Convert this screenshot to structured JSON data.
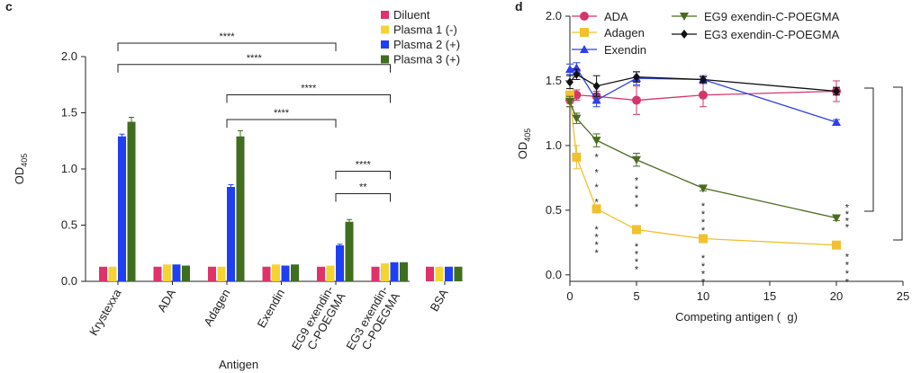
{
  "chart_data": [
    {
      "panel": "c",
      "type": "bar",
      "xlabel": "Antigen",
      "ylabel": "OD",
      "ylabel_sub": "405",
      "ylim": [
        0,
        2.0
      ],
      "yticks": [
        "0.0",
        "0.5",
        "1.0",
        "1.5",
        "2.0"
      ],
      "yticks_values": [
        0,
        0.5,
        1.0,
        1.5,
        2.0
      ],
      "categories": [
        "Krystexxa",
        "ADA",
        "Adagen",
        "Exendin",
        "EG9 exendin-C-POEGMA",
        "EG3 exendin-C-POEGMA",
        "BSA"
      ],
      "category_lines": [
        [
          "Krystexxa"
        ],
        [
          "ADA"
        ],
        [
          "Adagen"
        ],
        [
          "Exendin"
        ],
        [
          "EG9 exendin-",
          "C-POEGMA"
        ],
        [
          "EG3 exendin-",
          "C-POEGMA"
        ],
        [
          "BSA"
        ]
      ],
      "series": [
        {
          "name": "Diluent",
          "color": "#e0316b",
          "values": [
            0.13,
            0.13,
            0.13,
            0.13,
            0.13,
            0.13,
            0.13
          ],
          "errors": [
            0,
            0,
            0,
            0,
            0,
            0,
            0
          ]
        },
        {
          "name": "Plasma 1 (-)",
          "color": "#f5d431",
          "values": [
            0.13,
            0.15,
            0.13,
            0.15,
            0.14,
            0.16,
            0.13
          ],
          "errors": [
            0,
            0,
            0,
            0,
            0,
            0,
            0
          ]
        },
        {
          "name": "Plasma 2 (+)",
          "color": "#1f3ff5",
          "values": [
            1.29,
            0.15,
            0.84,
            0.14,
            0.32,
            0.17,
            0.13
          ],
          "errors": [
            0.02,
            0,
            0.02,
            0,
            0.01,
            0,
            0
          ]
        },
        {
          "name": "Plasma 3 (+)",
          "color": "#3f6e1e",
          "values": [
            1.42,
            0.14,
            1.29,
            0.15,
            0.53,
            0.17,
            0.13
          ],
          "errors": [
            0.04,
            0,
            0.05,
            0,
            0.02,
            0,
            0
          ]
        }
      ],
      "significance": [
        {
          "label": "****",
          "from": "Krystexxa",
          "to": "EG9 exendin-C-POEGMA",
          "y": 2.12
        },
        {
          "label": "****",
          "from": "Krystexxa",
          "to": "EG3 exendin-C-POEGMA",
          "y": 1.93
        },
        {
          "label": "****",
          "from": "Adagen",
          "to": "EG3 exendin-C-POEGMA",
          "y": 1.66
        },
        {
          "label": "****",
          "from": "Adagen",
          "to": "EG9 exendin-C-POEGMA",
          "y": 1.44
        },
        {
          "label": "****",
          "from": "EG9 exendin-C-POEGMA",
          "to": "EG3 exendin-C-POEGMA",
          "y": 0.98
        },
        {
          "label": "**",
          "from": "EG9 exendin-C-POEGMA",
          "to": "EG3 exendin-C-POEGMA",
          "y": 0.78
        }
      ]
    },
    {
      "panel": "d",
      "type": "line",
      "xlabel": "Competing antigen (  g)",
      "ylabel": "OD",
      "ylabel_sub": "405",
      "xlim": [
        0,
        25
      ],
      "ylim": [
        -0.05,
        2.0
      ],
      "xticks": [
        0,
        5,
        10,
        15,
        20,
        25
      ],
      "yticks": [
        "0.0",
        "0.5",
        "1.0",
        "1.5",
        "2.0"
      ],
      "yticks_values": [
        0,
        0.5,
        1.0,
        1.5,
        2.0
      ],
      "series": [
        {
          "name": "ADA",
          "color": "#d4366b",
          "marker": "circle",
          "x": [
            0,
            0.5,
            2,
            5,
            10,
            20
          ],
          "y": [
            1.35,
            1.39,
            1.38,
            1.35,
            1.39,
            1.42
          ],
          "errors": [
            0.05,
            0.04,
            0.04,
            0.11,
            0.09,
            0.08
          ]
        },
        {
          "name": "Adagen",
          "color": "#f2c12e",
          "marker": "square",
          "x": [
            0,
            0.5,
            2,
            5,
            10,
            20
          ],
          "y": [
            1.39,
            0.91,
            0.51,
            0.35,
            0.28,
            0.23
          ],
          "errors": [
            0.05,
            0.09,
            0.02,
            0.02,
            0.02,
            0.02
          ]
        },
        {
          "name": "Exendin",
          "color": "#2d3fe8",
          "marker": "triangle-up",
          "x": [
            0,
            0.5,
            2,
            5,
            10,
            20
          ],
          "y": [
            1.59,
            1.6,
            1.35,
            1.52,
            1.51,
            1.18
          ],
          "errors": [
            0.04,
            0.04,
            0.05,
            0.05,
            0.03,
            0.02
          ]
        },
        {
          "name": "EG9 exendin-C-POEGMA",
          "color": "#4a6b1f",
          "marker": "triangle-down",
          "x": [
            0,
            0.5,
            2,
            5,
            10,
            20
          ],
          "y": [
            1.34,
            1.21,
            1.04,
            0.89,
            0.67,
            0.44
          ],
          "errors": [
            0.04,
            0.04,
            0.05,
            0.05,
            0.02,
            0.02
          ]
        },
        {
          "name": "EG3 exendin-C-POEGMA",
          "color": "#111111",
          "marker": "diamond",
          "x": [
            0,
            0.5,
            2,
            5,
            10,
            20
          ],
          "y": [
            1.49,
            1.55,
            1.46,
            1.53,
            1.51,
            1.42
          ],
          "errors": [
            0.05,
            0.04,
            0.08,
            0.04,
            0.02,
            0.03
          ]
        }
      ],
      "star_columns": [
        {
          "x": 2,
          "y_top": 0.94,
          "y_bottom": 0.53,
          "label": "****"
        },
        {
          "x": 2,
          "y_top": 0.38,
          "y_bottom": 0.17,
          "label": "****"
        },
        {
          "x": 5,
          "y_top": 0.76,
          "y_bottom": 0.52,
          "label": "****"
        },
        {
          "x": 5,
          "y_top": 0.25,
          "y_bottom": 0.04,
          "label": "****"
        },
        {
          "x": 10,
          "y_top": 0.56,
          "y_bottom": 0.34,
          "label": "****"
        },
        {
          "x": 10,
          "y_top": 0.16,
          "y_bottom": -0.06,
          "label": "****"
        },
        {
          "x": 20.8,
          "y_top": 0.55,
          "y_bottom": 0.37,
          "label": "****"
        },
        {
          "x": 20.8,
          "y_top": 0.17,
          "y_bottom": -0.06,
          "label": "****"
        }
      ]
    }
  ]
}
